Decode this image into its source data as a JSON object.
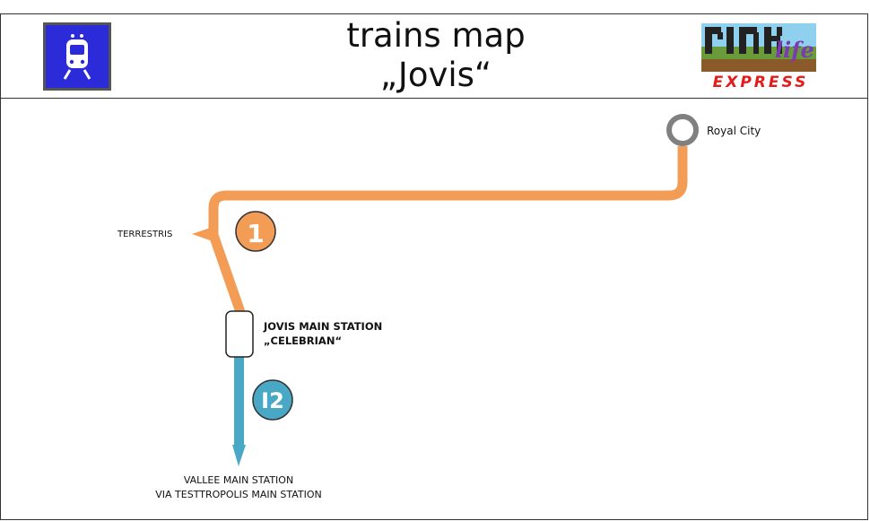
{
  "header": {
    "title_line1": "trains map",
    "title_line2": "„Jovis“",
    "logo_text": "EXPRESS",
    "logo_word": "life"
  },
  "stations": {
    "royal_city": "Royal City",
    "terrestris": "TERRESTRIS",
    "jovis_line1": "JOVIS MAIN STATION",
    "jovis_line2": "„CELEBRIAN“",
    "vallee_line1": "VALLEE MAIN STATION",
    "vallee_line2": "VIA TESTTROPOLIS MAIN STATION"
  },
  "lines": [
    {
      "label": "1",
      "color": "#f39c55"
    },
    {
      "label": "I2",
      "color": "#4aa8c7"
    }
  ],
  "icons": {
    "train": "train-icon",
    "logo": "rail-life-express-logo"
  }
}
